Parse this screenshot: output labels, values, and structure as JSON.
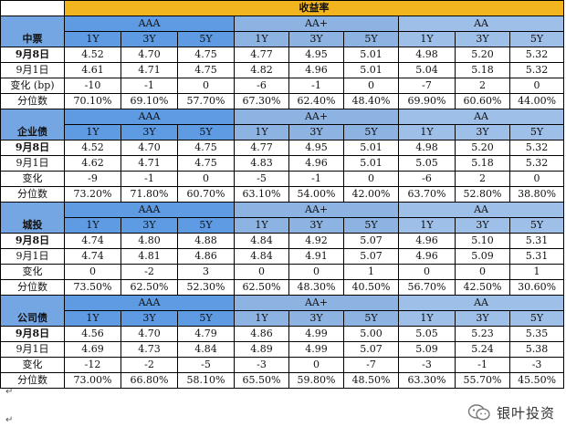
{
  "header": {
    "title": "收益率"
  },
  "rating_groups": [
    "AAA",
    "AA+",
    "AA"
  ],
  "tenors": [
    "1Y",
    "3Y",
    "5Y"
  ],
  "sections": [
    {
      "name": "中票",
      "rows": [
        {
          "label": "9月8日",
          "bold": true,
          "values": [
            "4.52",
            "4.70",
            "4.75",
            "4.77",
            "4.95",
            "5.01",
            "4.98",
            "5.20",
            "5.32"
          ]
        },
        {
          "label": "9月1日",
          "bold": false,
          "values": [
            "4.61",
            "4.71",
            "4.75",
            "4.82",
            "4.96",
            "5.01",
            "5.04",
            "5.18",
            "5.32"
          ]
        },
        {
          "label": "变化 (bp)",
          "bold": false,
          "values": [
            "-10",
            "-1",
            "0",
            "-6",
            "-1",
            "0",
            "-7",
            "2",
            "0"
          ]
        },
        {
          "label": "分位数",
          "bold": false,
          "values": [
            "70.10%",
            "69.10%",
            "57.70%",
            "67.30%",
            "62.40%",
            "48.40%",
            "69.90%",
            "60.60%",
            "44.00%"
          ]
        }
      ]
    },
    {
      "name": "企业债",
      "rows": [
        {
          "label": "9月8日",
          "bold": true,
          "values": [
            "4.52",
            "4.70",
            "4.75",
            "4.77",
            "4.95",
            "5.01",
            "4.98",
            "5.20",
            "5.32"
          ]
        },
        {
          "label": "9月1日",
          "bold": false,
          "values": [
            "4.62",
            "4.71",
            "4.75",
            "4.83",
            "4.96",
            "5.01",
            "5.05",
            "5.18",
            "5.32"
          ]
        },
        {
          "label": "变化",
          "bold": false,
          "values": [
            "-9",
            "-1",
            "0",
            "-5",
            "-1",
            "0",
            "-6",
            "2",
            "0"
          ]
        },
        {
          "label": "分位数",
          "bold": false,
          "values": [
            "73.20%",
            "71.80%",
            "60.70%",
            "63.10%",
            "54.00%",
            "42.00%",
            "63.70%",
            "52.80%",
            "38.80%"
          ]
        }
      ]
    },
    {
      "name": "城投",
      "rows": [
        {
          "label": "9月8日",
          "bold": true,
          "values": [
            "4.74",
            "4.80",
            "4.88",
            "4.84",
            "4.92",
            "5.07",
            "4.96",
            "5.10",
            "5.31"
          ]
        },
        {
          "label": "9月1日",
          "bold": false,
          "values": [
            "4.74",
            "4.81",
            "4.86",
            "4.84",
            "4.91",
            "5.07",
            "4.96",
            "5.09",
            "5.31"
          ]
        },
        {
          "label": "变化",
          "bold": false,
          "values": [
            "0",
            "-2",
            "3",
            "0",
            "0",
            "1",
            "0",
            "0",
            "1"
          ]
        },
        {
          "label": "分位数",
          "bold": false,
          "values": [
            "73.50%",
            "62.50%",
            "52.30%",
            "62.50%",
            "48.30%",
            "40.50%",
            "56.70%",
            "42.50%",
            "30.60%"
          ]
        }
      ]
    },
    {
      "name": "公司债",
      "rows": [
        {
          "label": "9月8日",
          "bold": true,
          "values": [
            "4.56",
            "4.70",
            "4.79",
            "4.86",
            "4.99",
            "5.00",
            "5.05",
            "5.23",
            "5.35"
          ]
        },
        {
          "label": "9月1日",
          "bold": false,
          "values": [
            "4.69",
            "4.73",
            "4.84",
            "4.89",
            "4.99",
            "5.07",
            "5.09",
            "5.24",
            "5.38"
          ]
        },
        {
          "label": "变化",
          "bold": false,
          "values": [
            "-12",
            "-2",
            "-5",
            "-3",
            "0",
            "-7",
            "-3",
            "-1",
            "-3"
          ]
        },
        {
          "label": "分位数",
          "bold": false,
          "values": [
            "73.00%",
            "66.80%",
            "58.10%",
            "65.50%",
            "59.80%",
            "48.50%",
            "63.30%",
            "55.70%",
            "45.50%"
          ]
        }
      ]
    }
  ],
  "footer_marks": [
    "↵",
    "↵"
  ],
  "watermark": {
    "text": "银叶投资",
    "icon": "wechat-icon"
  },
  "colors": {
    "header_bar": "#f3b51f",
    "aaa": "#5e9be3",
    "aa_plus": "#8db3e2",
    "aa": "#9dbfe8",
    "category": "#74a6e3"
  }
}
